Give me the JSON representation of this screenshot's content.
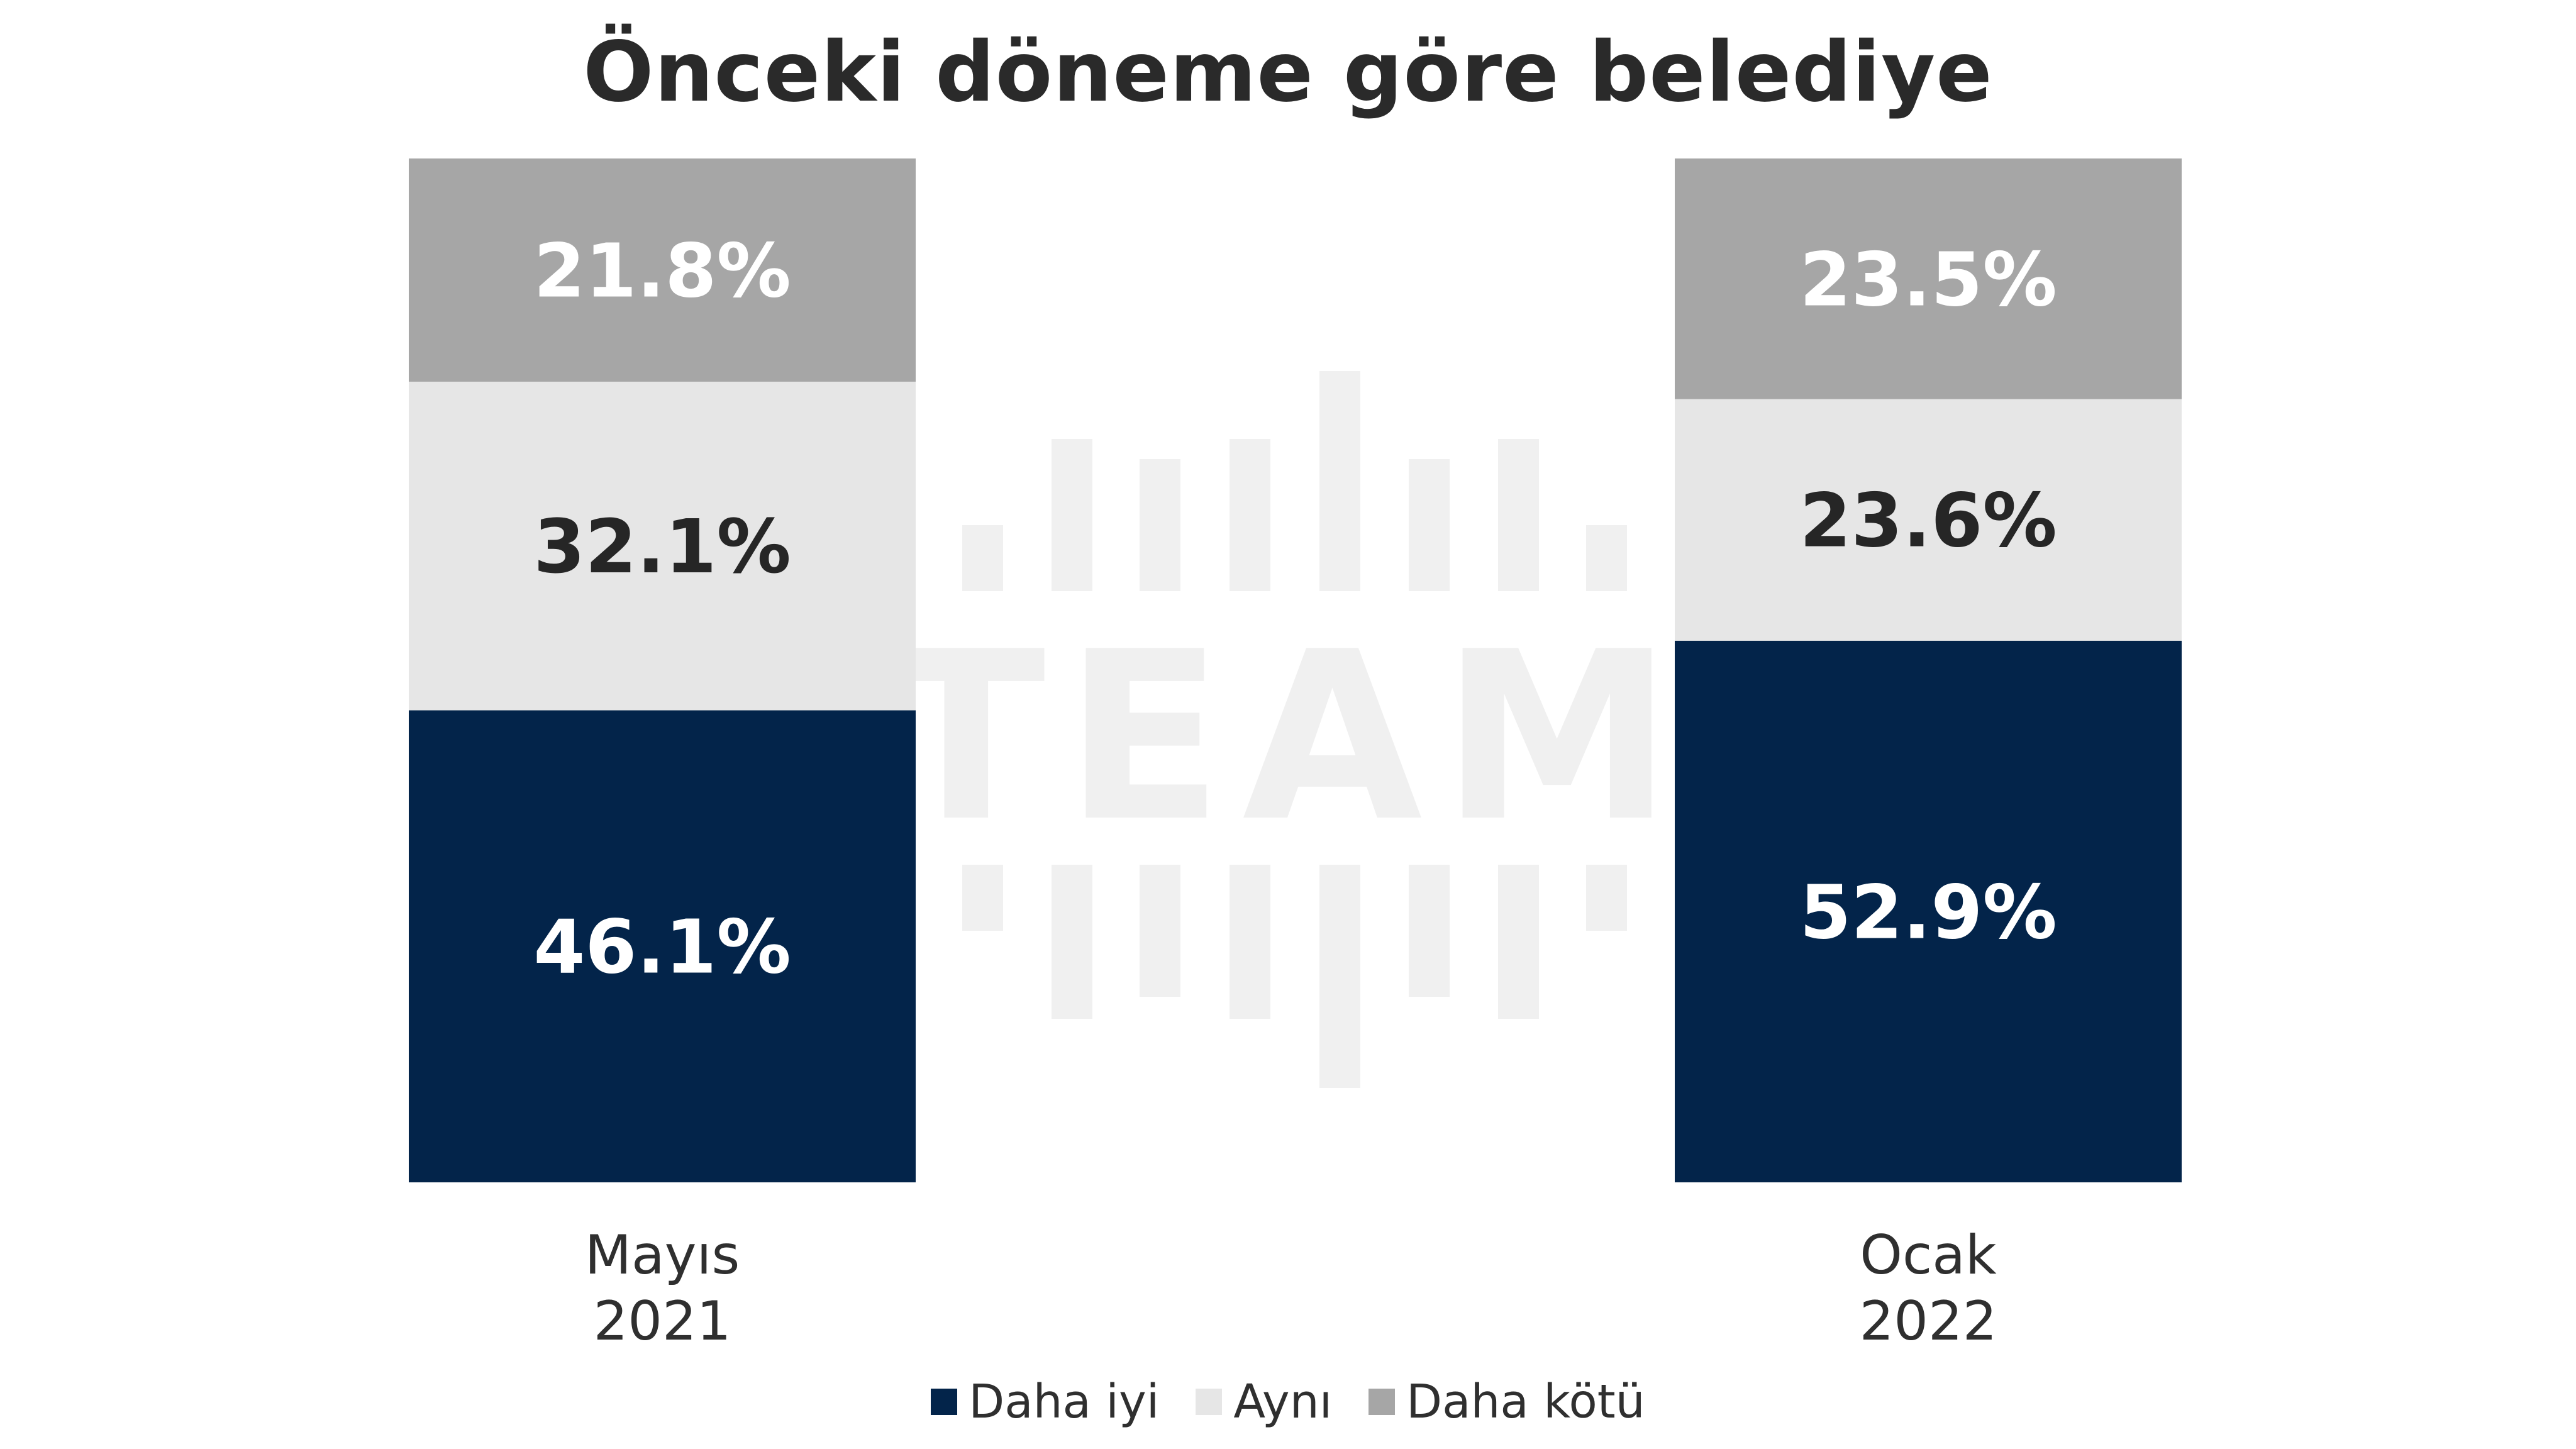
{
  "chart_data": {
    "type": "bar",
    "stacked": true,
    "title": "Önceki döneme göre belediye",
    "categories": [
      [
        "Mayıs",
        "2021"
      ],
      [
        "Ocak",
        "2022"
      ]
    ],
    "series": [
      {
        "name": "Daha iyi",
        "values": [
          46.1,
          52.9
        ],
        "labels": [
          "46.1%",
          "52.9%"
        ]
      },
      {
        "name": "Aynı",
        "values": [
          32.1,
          23.6
        ],
        "labels": [
          "32.1%",
          "23.6%"
        ]
      },
      {
        "name": "Daha kötü",
        "values": [
          21.8,
          23.5
        ],
        "labels": [
          "21.8%",
          "23.5%"
        ]
      }
    ],
    "ylim": [
      0,
      100
    ],
    "grid": false,
    "legend_position": "bottom-center"
  },
  "watermark": {
    "logo_text": "TEAM"
  },
  "colors": {
    "daha_iyi": "#03244a",
    "ayni": "#e6e6e6",
    "daha_kotu": "#a6a6a6",
    "label_on_dark": "#ffffff",
    "label_on_light": "#262626",
    "watermark": "#f0f0f0"
  }
}
